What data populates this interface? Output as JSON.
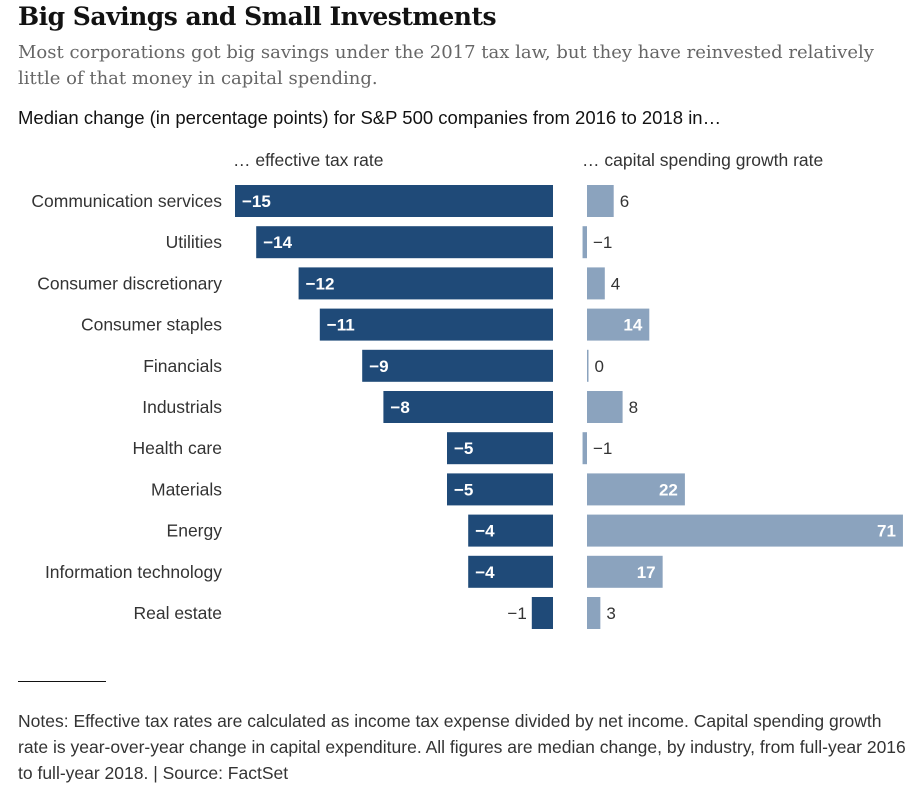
{
  "title": "Big Savings and Small Investments",
  "subtitle": "Most corporations got big savings under the 2017 tax law, but they have reinvested relatively little of that money in capital spending.",
  "heading": "Median change (in percentage points) for S&P 500 companies from 2016 to 2018 in…",
  "notes": "Notes: Effective tax rates are calculated as income tax expense divided by net income. Capital spending growth rate is year-over-year change in capital expenditure. All figures are median change, by industry, from full-year 2016 to full-year 2018. | Source: FactSet",
  "chart_data": {
    "type": "bar",
    "orientation": "horizontal",
    "categories": [
      "Communication services",
      "Utilities",
      "Consumer discretionary",
      "Consumer staples",
      "Financials",
      "Industrials",
      "Health care",
      "Materials",
      "Energy",
      "Information technology",
      "Real estate"
    ],
    "series": [
      {
        "name": "… effective tax rate",
        "values": [
          -15,
          -14,
          -12,
          -11,
          -9,
          -8,
          -5,
          -5,
          -4,
          -4,
          -1
        ],
        "labels": [
          "−15",
          "−14",
          "−12",
          "−11",
          "−9",
          "−8",
          "−5",
          "−5",
          "−4",
          "−4",
          "−1"
        ],
        "color": "#1f4a78"
      },
      {
        "name": "… capital spending growth rate",
        "values": [
          6,
          -1,
          4,
          14,
          0,
          8,
          -1,
          22,
          71,
          17,
          3
        ],
        "labels": [
          "6",
          "−1",
          "4",
          "14",
          "0",
          "8",
          "−1",
          "22",
          "71",
          "17",
          "3"
        ],
        "color": "#8ba3be"
      }
    ],
    "label_color_inside": "#ffffff",
    "label_color_outside": "#333333"
  }
}
